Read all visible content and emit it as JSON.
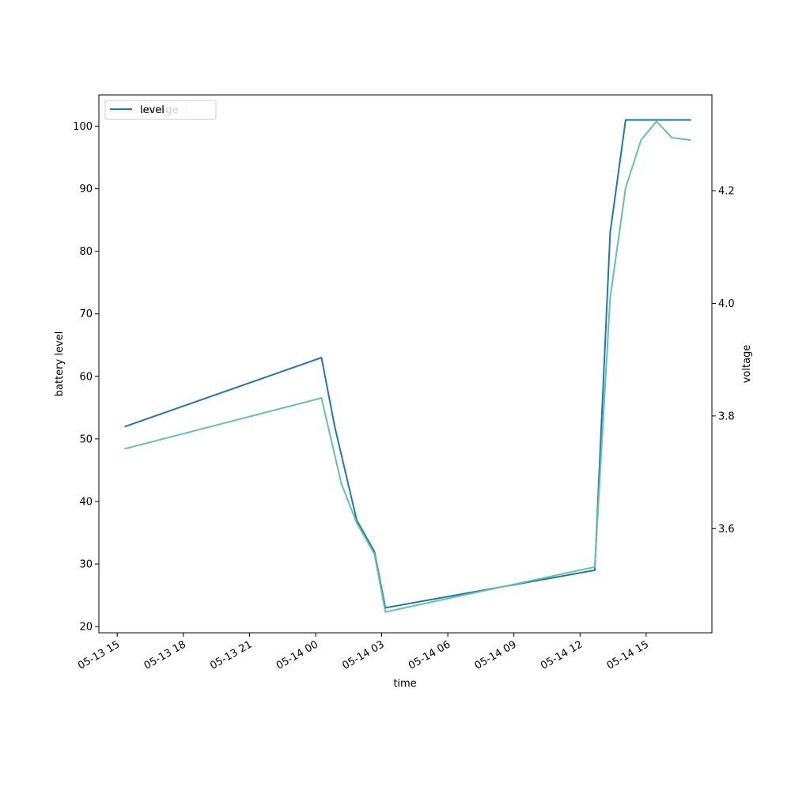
{
  "chart_data": {
    "type": "line",
    "xlabel": "time",
    "ylabel": "battery level",
    "y2label": "voltage",
    "x_ticks": [
      "05-13 15",
      "05-13 18",
      "05-13 21",
      "05-14 00",
      "05-14 03",
      "05-14 06",
      "05-14 09",
      "05-14 12",
      "05-14 15"
    ],
    "y_ticks": [
      "20",
      "30",
      "40",
      "50",
      "60",
      "70",
      "80",
      "90",
      "100"
    ],
    "y2_ticks": [
      "3.6",
      "3.8",
      "4.0",
      "4.2"
    ],
    "xlim": [
      "2021-05-13 14:10",
      "2021-05-14 17:59"
    ],
    "ylim": [
      19,
      105
    ],
    "y2lim": [
      3.415,
      4.37
    ],
    "legend": {
      "placement": "upper left",
      "overlap": true
    },
    "series": [
      {
        "name": "level",
        "axis": "left",
        "color": "#1f77b4",
        "points": [
          [
            "2021-05-13 15:22",
            52
          ],
          [
            "2021-05-14 00:16",
            63
          ],
          [
            "2021-05-14 00:52",
            52
          ],
          [
            "2021-05-14 01:52",
            37
          ],
          [
            "2021-05-14 02:40",
            32
          ],
          [
            "2021-05-14 03:10",
            23
          ],
          [
            "2021-05-14 12:40",
            29
          ],
          [
            "2021-05-14 13:22",
            83
          ],
          [
            "2021-05-14 14:04",
            101
          ],
          [
            "2021-05-14 17:00",
            101
          ]
        ]
      },
      {
        "name": "voltage",
        "axis": "right",
        "color": "#66c2a5",
        "points": [
          [
            "2021-05-13 15:22",
            3.742
          ],
          [
            "2021-05-14 00:16",
            3.832
          ],
          [
            "2021-05-14 01:10",
            3.68
          ],
          [
            "2021-05-14 01:52",
            3.61
          ],
          [
            "2021-05-14 02:40",
            3.555
          ],
          [
            "2021-05-14 03:10",
            3.452
          ],
          [
            "2021-05-14 12:40",
            3.532
          ],
          [
            "2021-05-14 13:22",
            4.01
          ],
          [
            "2021-05-14 14:04",
            4.205
          ],
          [
            "2021-05-14 14:46",
            4.29
          ],
          [
            "2021-05-14 15:28",
            4.323
          ],
          [
            "2021-05-14 16:10",
            4.294
          ],
          [
            "2021-05-14 17:00",
            4.29
          ]
        ]
      }
    ]
  }
}
